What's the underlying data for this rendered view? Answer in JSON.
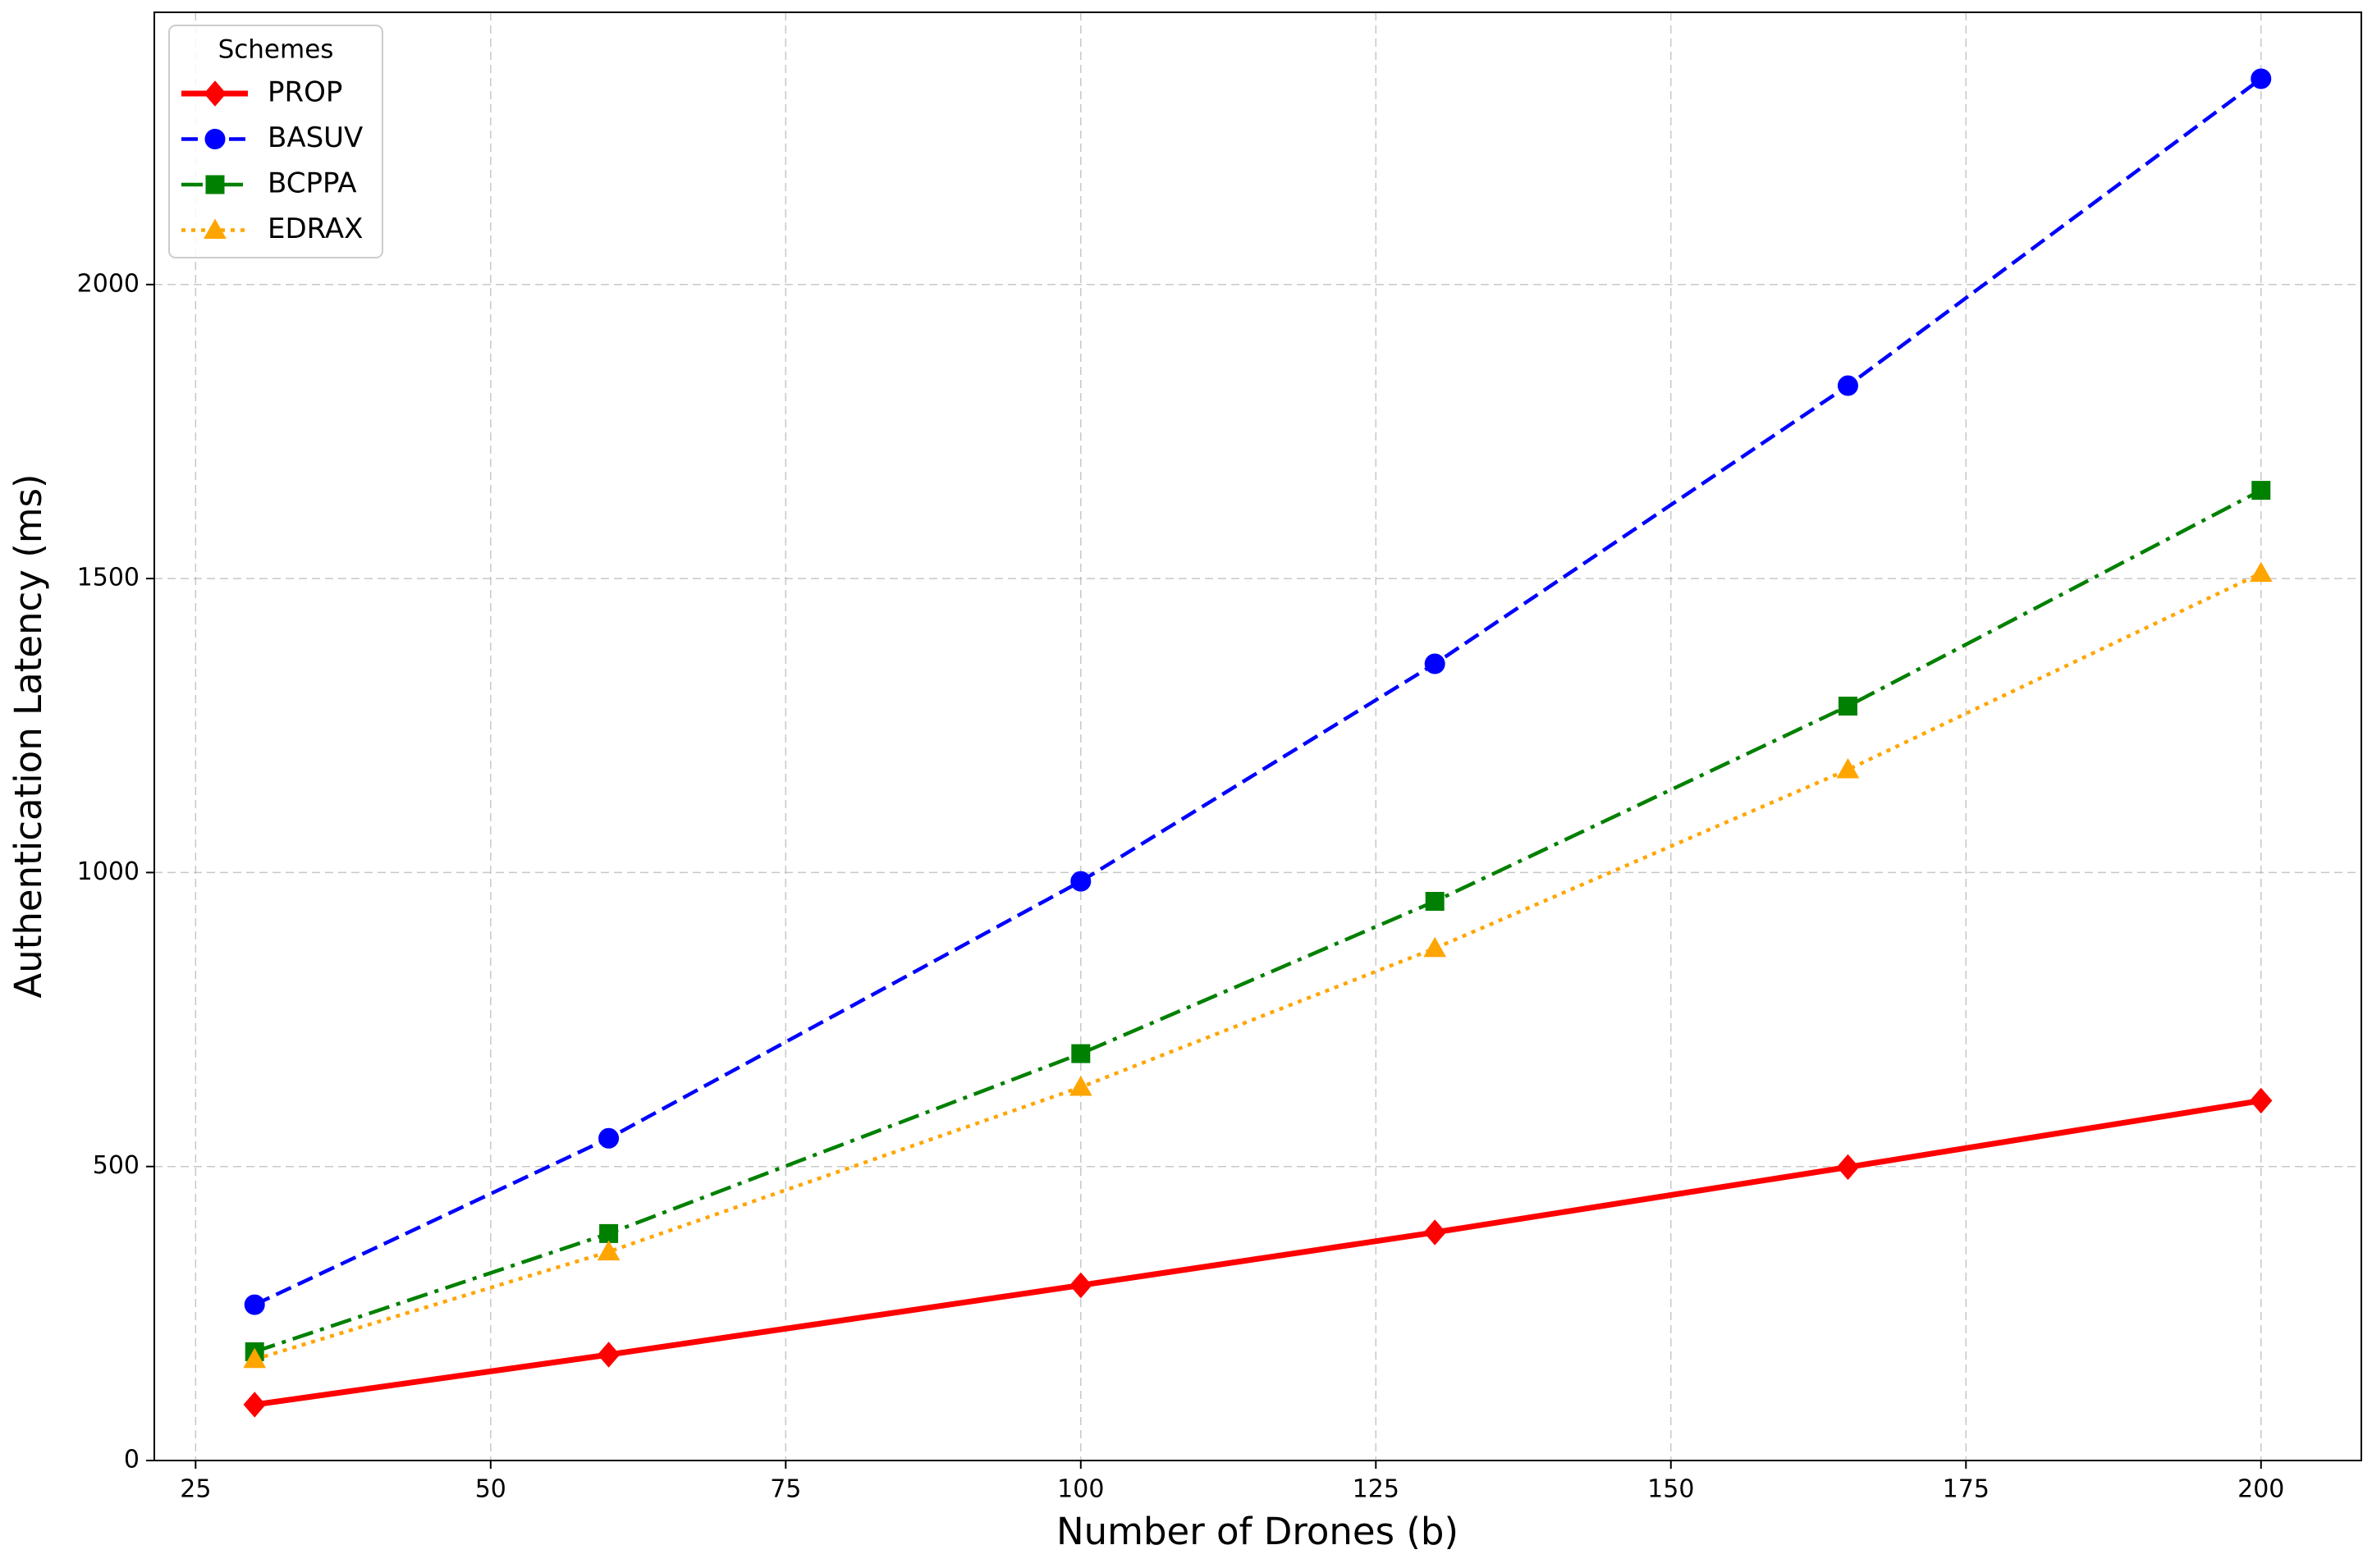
{
  "chart_data": {
    "type": "line",
    "xlabel": "Number of Drones (b)",
    "ylabel": "Authentication Latency (ms)",
    "x": [
      30,
      60,
      100,
      130,
      165,
      200
    ],
    "series": [
      {
        "name": "PROP",
        "color": "#ff0000",
        "linestyle": "solid",
        "marker": "diamond",
        "values": [
          95,
          180,
          298,
          388,
          499,
          612
        ]
      },
      {
        "name": "BASUV",
        "color": "#0000ff",
        "linestyle": "dashed",
        "marker": "circle",
        "values": [
          265,
          548,
          985,
          1355,
          1828,
          2350
        ]
      },
      {
        "name": "BCPPA",
        "color": "#008000",
        "linestyle": "dashdot",
        "marker": "square",
        "values": [
          185,
          386,
          692,
          951,
          1283,
          1650
        ]
      },
      {
        "name": "EDRAX",
        "color": "#ffa500",
        "linestyle": "dotted",
        "marker": "triangle",
        "values": [
          172,
          355,
          635,
          871,
          1175,
          1509
        ]
      }
    ],
    "xlim": [
      21.5,
      208.5
    ],
    "ylim": [
      0,
      2463
    ],
    "xticks": [
      25,
      50,
      75,
      100,
      125,
      150,
      175,
      200
    ],
    "yticks": [
      0,
      500,
      1000,
      1500,
      2000
    ],
    "grid": true,
    "legend_title": "Schemes",
    "legend_position": "upper left"
  }
}
